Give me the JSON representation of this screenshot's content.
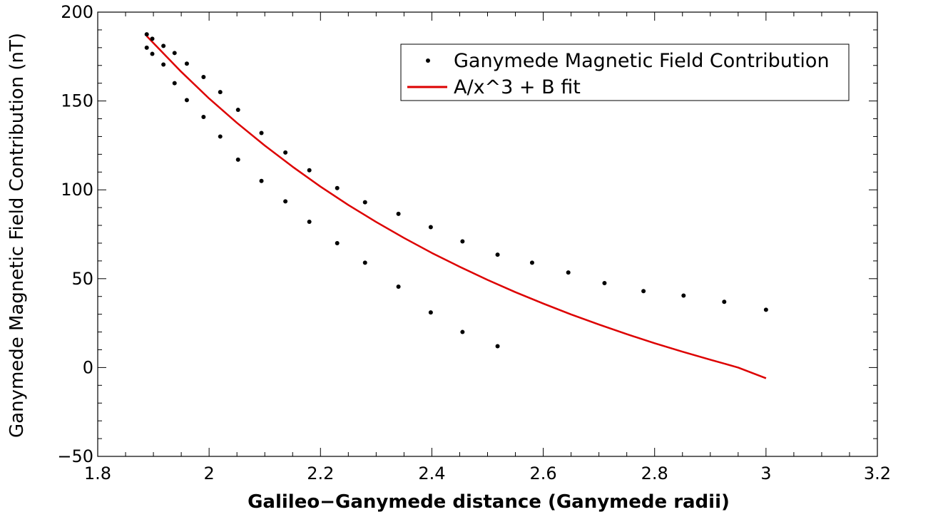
{
  "chart_data": {
    "type": "scatter",
    "xlabel": "Galileo−Ganymede distance (Ganymede radii)",
    "ylabel": "Ganymede Magnetic Field Contribution (nT)",
    "xlim": [
      1.8,
      3.2
    ],
    "ylim": [
      -50,
      200
    ],
    "xticks": [
      1.8,
      2.0,
      2.2,
      2.4,
      2.6,
      2.8,
      3.0,
      3.2
    ],
    "xtick_labels": [
      "1.8",
      "2",
      "2.2",
      "2.4",
      "2.6",
      "2.8",
      "3",
      "3.2"
    ],
    "yticks": [
      -50,
      0,
      50,
      100,
      150,
      200
    ],
    "ytick_labels": [
      "−50",
      "0",
      "50",
      "100",
      "150",
      "200"
    ],
    "grid": false,
    "legend_position": "top-right",
    "series": [
      {
        "name": "Ganymede Magnetic Field Contribution",
        "kind": "points",
        "color": "#000000",
        "points": [
          [
            1.888,
            187.5
          ],
          [
            1.888,
            180
          ],
          [
            1.898,
            185
          ],
          [
            1.898,
            176.5
          ],
          [
            1.918,
            181
          ],
          [
            1.918,
            170.5
          ],
          [
            1.938,
            177
          ],
          [
            1.938,
            160
          ],
          [
            1.96,
            171
          ],
          [
            1.96,
            150.5
          ],
          [
            1.99,
            163.5
          ],
          [
            1.99,
            141
          ],
          [
            2.02,
            155
          ],
          [
            2.02,
            130
          ],
          [
            2.052,
            145
          ],
          [
            2.052,
            117
          ],
          [
            2.094,
            132
          ],
          [
            2.094,
            105
          ],
          [
            2.137,
            121
          ],
          [
            2.137,
            93.5
          ],
          [
            2.18,
            111
          ],
          [
            2.18,
            82
          ],
          [
            2.23,
            101
          ],
          [
            2.23,
            70
          ],
          [
            2.28,
            93
          ],
          [
            2.28,
            59
          ],
          [
            2.34,
            86.5
          ],
          [
            2.34,
            45.5
          ],
          [
            2.398,
            79
          ],
          [
            2.398,
            31
          ],
          [
            2.455,
            71
          ],
          [
            2.455,
            20
          ],
          [
            2.518,
            63.5
          ],
          [
            2.518,
            12
          ],
          [
            2.58,
            59
          ],
          [
            2.645,
            53.5
          ],
          [
            2.71,
            47.5
          ],
          [
            2.78,
            43
          ],
          [
            2.852,
            40.5
          ],
          [
            2.925,
            37
          ],
          [
            3.0,
            32.5
          ]
        ]
      },
      {
        "name": "A/x^3 + B fit",
        "kind": "line",
        "color": "#dd0000",
        "points": [
          [
            1.888,
            186.5
          ],
          [
            1.9,
            182.6
          ],
          [
            1.95,
            166.4
          ],
          [
            2.0,
            151.4
          ],
          [
            2.05,
            137.7
          ],
          [
            2.1,
            124.9
          ],
          [
            2.15,
            113.0
          ],
          [
            2.2,
            101.8
          ],
          [
            2.25,
            91.5
          ],
          [
            2.3,
            81.9
          ],
          [
            2.35,
            72.9
          ],
          [
            2.4,
            64.5
          ],
          [
            2.45,
            56.7
          ],
          [
            2.5,
            49.3
          ],
          [
            2.55,
            42.4
          ],
          [
            2.6,
            36.0
          ],
          [
            2.65,
            29.9
          ],
          [
            2.7,
            24.2
          ],
          [
            2.75,
            18.8
          ],
          [
            2.8,
            13.7
          ],
          [
            2.85,
            8.9
          ],
          [
            2.9,
            4.4
          ],
          [
            2.95,
            0.0
          ],
          [
            3.0,
            -6.0
          ]
        ]
      }
    ]
  }
}
